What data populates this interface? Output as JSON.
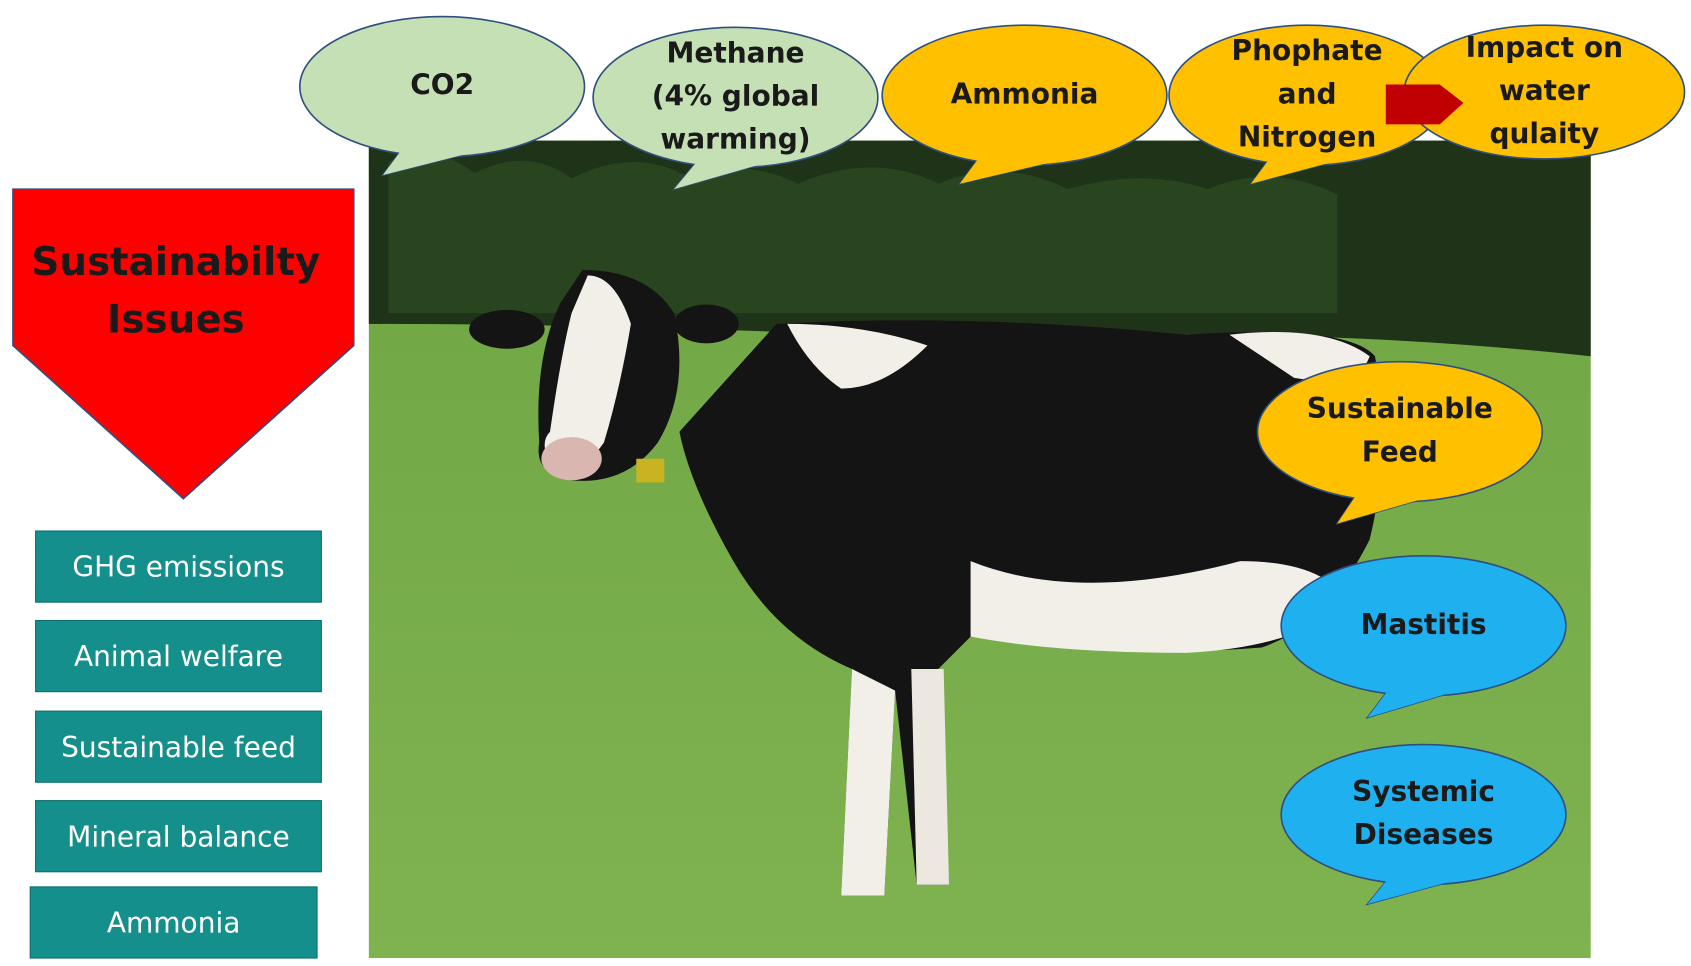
{
  "title": {
    "lines": [
      "Sustainabilty",
      "Issues"
    ]
  },
  "issues": [
    "GHG emissions",
    "Animal welfare",
    "Sustainable feed",
    "Mineral balance",
    "Ammonia"
  ],
  "bubbles": [
    {
      "lines": [
        "CO2"
      ]
    },
    {
      "lines": [
        "Methane",
        "(4% global",
        "warming)"
      ]
    },
    {
      "lines": [
        "Ammonia"
      ]
    },
    {
      "lines": [
        "Phophate",
        "and",
        "Nitrogen"
      ]
    },
    {
      "lines": [
        "Impact on",
        "water",
        "qulaity"
      ]
    },
    {
      "lines": [
        "Sustainable",
        "Feed"
      ]
    },
    {
      "lines": [
        "Mastitis"
      ]
    },
    {
      "lines": [
        "Systemic",
        "Diseases"
      ]
    }
  ]
}
